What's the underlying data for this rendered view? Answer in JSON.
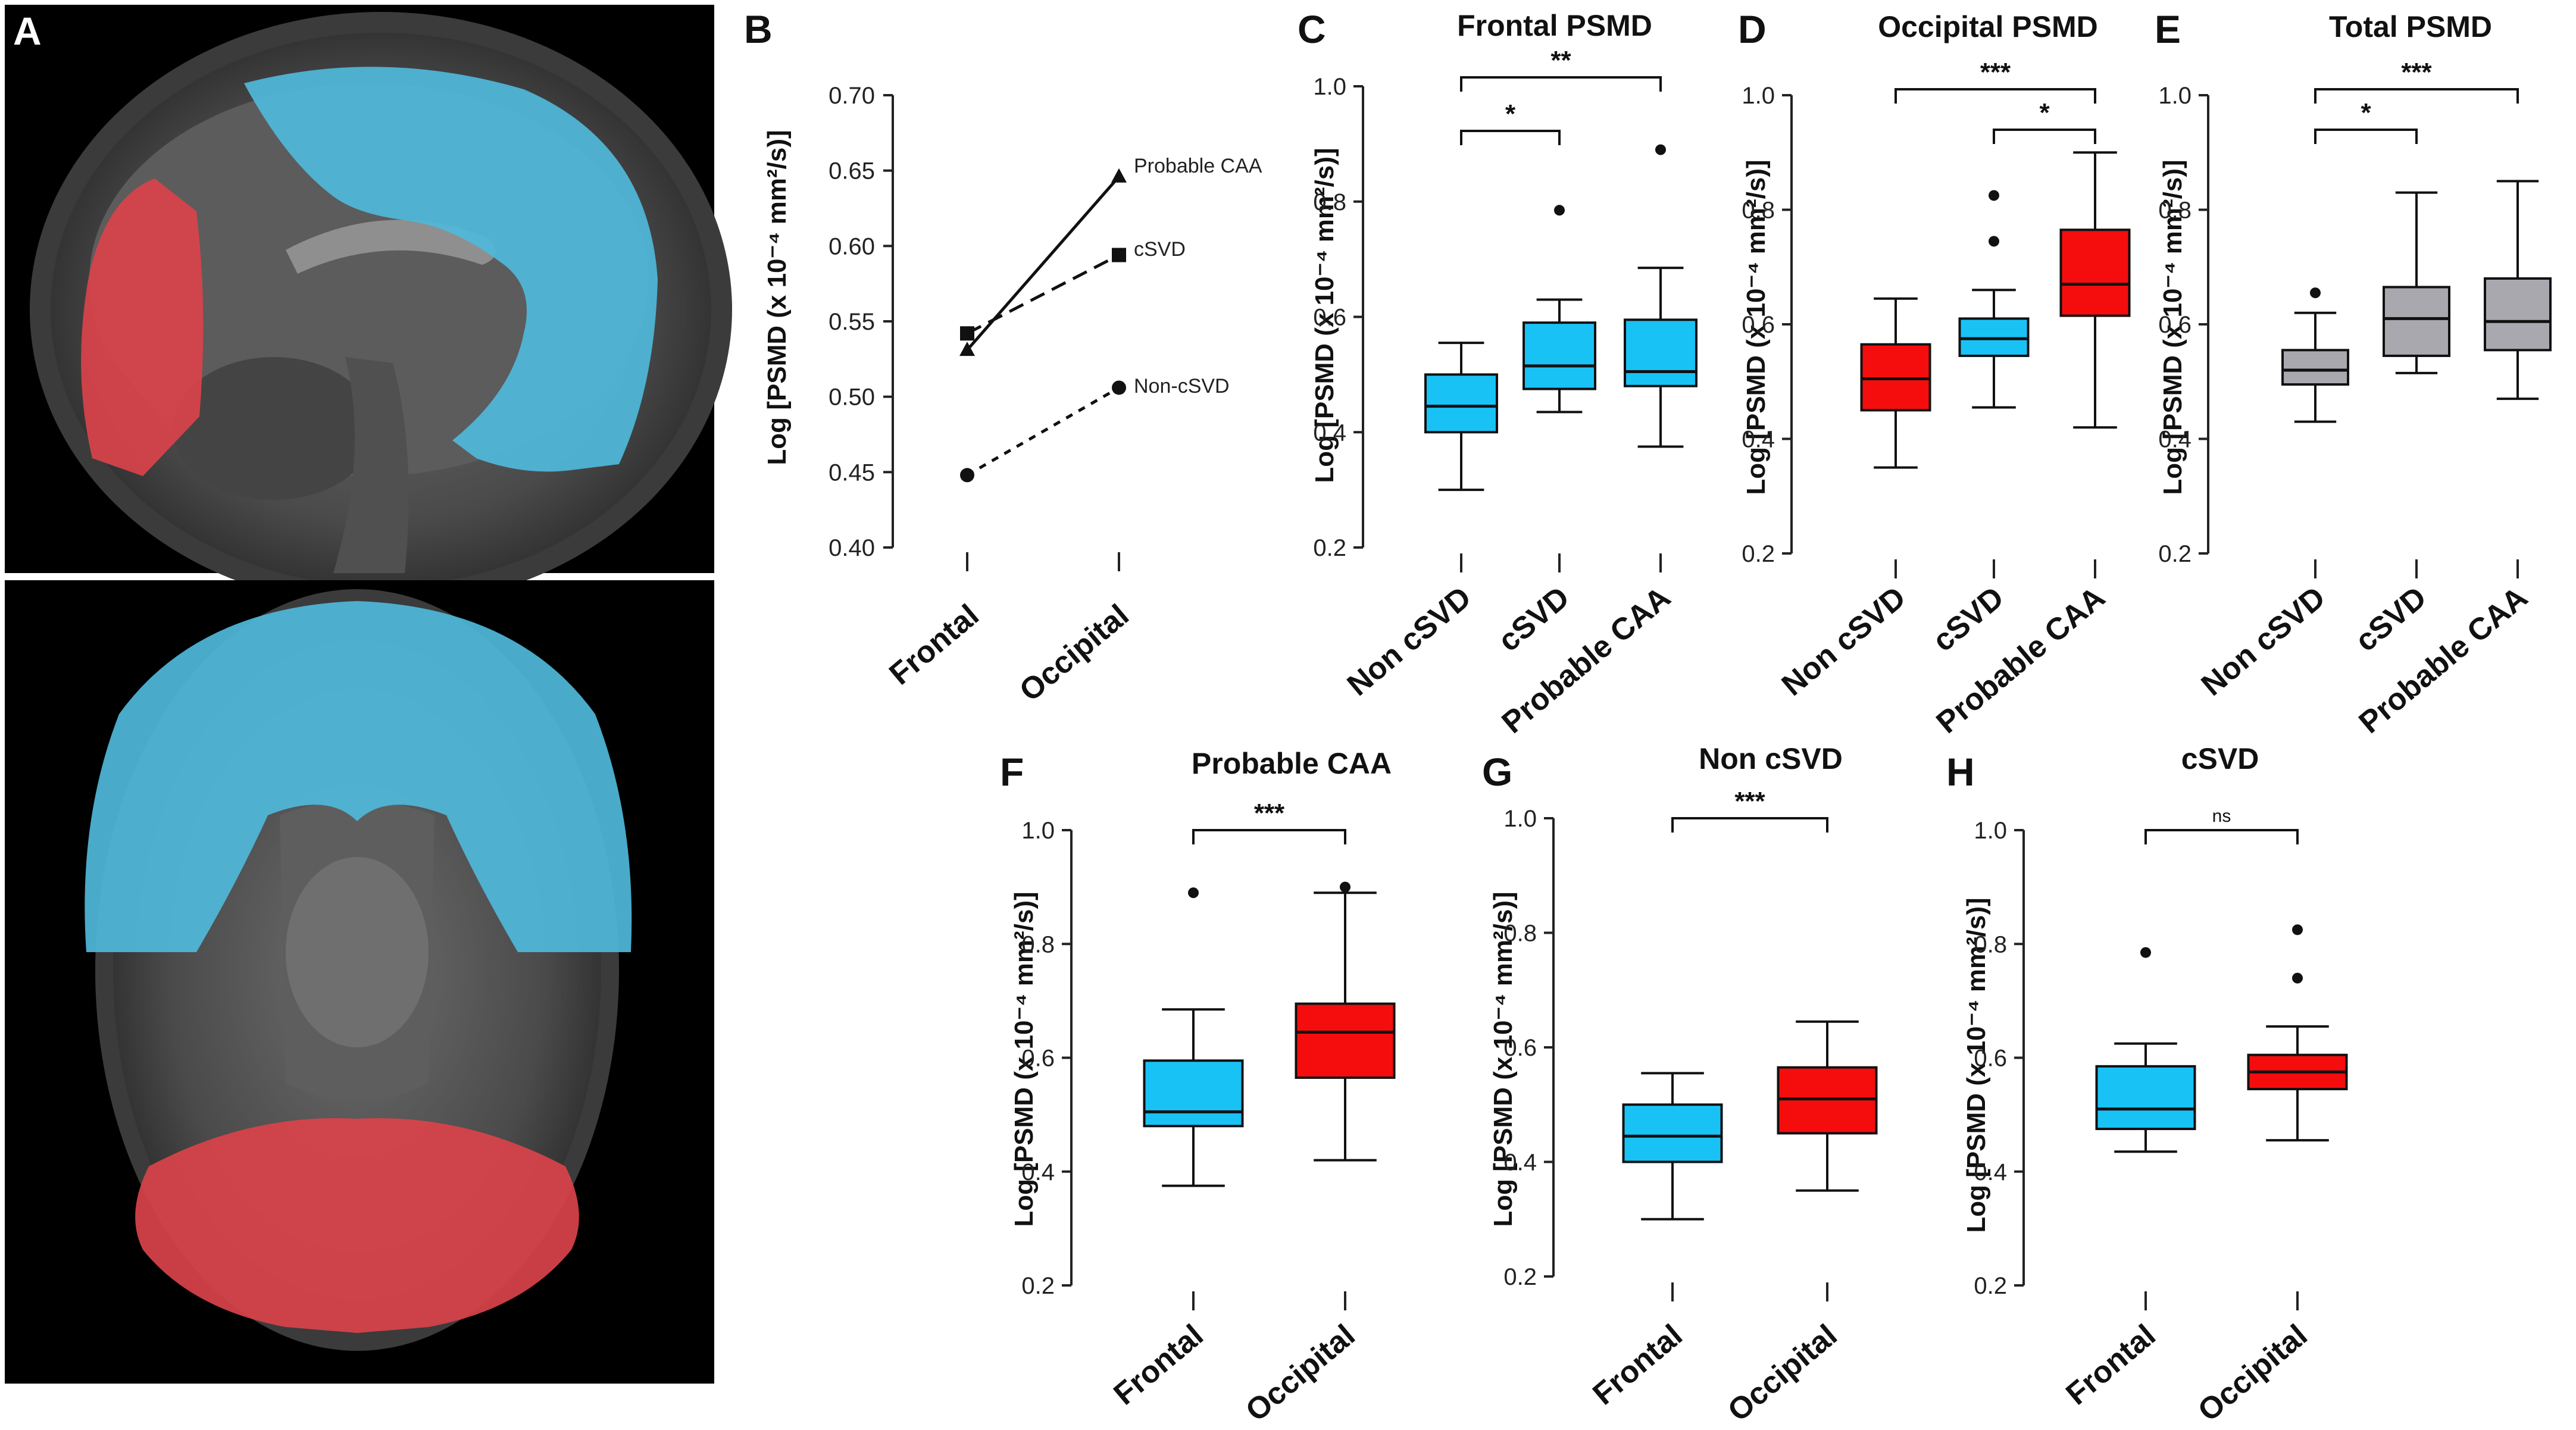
{
  "panel_labels": {
    "A": "A",
    "B": "B",
    "C": "C",
    "D": "D",
    "E": "E",
    "F": "F",
    "G": "G",
    "H": "H"
  },
  "colors": {
    "frontal_region": "#d9434a",
    "occipital_region": "#4fb8da",
    "non_csvd": "#19c2f5",
    "csvd": "#19c2f5",
    "probable_caa": "#19c2f5",
    "red": "#f50d0d",
    "gray": "#a8a8ae"
  },
  "chart_data": [
    {
      "panel": "B",
      "type": "line",
      "title": "",
      "categories": [
        "Frontal",
        "Occipital"
      ],
      "ylabel": "Log [PSMD (x 10⁻⁴ mm²/s)]",
      "ylim": [
        0.4,
        0.7
      ],
      "yticks": [
        "0.40",
        "0.45",
        "0.50",
        "0.55",
        "0.60",
        "0.65",
        "0.70"
      ],
      "series": [
        {
          "name": "Probable CAA",
          "values": [
            0.531,
            0.646
          ],
          "marker": "triangle",
          "dash": "solid"
        },
        {
          "name": "cSVD",
          "values": [
            0.542,
            0.594
          ],
          "marker": "square",
          "dash": "dashed"
        },
        {
          "name": "Non-cSVD",
          "values": [
            0.448,
            0.506
          ],
          "marker": "circle",
          "dash": "dotted"
        }
      ]
    },
    {
      "panel": "C",
      "type": "box",
      "title": "Frontal PSMD",
      "ylabel": "Log [PSMD (x 10⁻⁴ mm²/s)]",
      "ylim": [
        0.2,
        1.0
      ],
      "yticks": [
        "0.2",
        "0.4",
        "0.6",
        "0.8",
        "1.0"
      ],
      "categories": [
        "Non cSVD",
        "cSVD",
        "Probable CAA"
      ],
      "boxes": [
        {
          "min": 0.3,
          "q1": 0.4,
          "median": 0.445,
          "q3": 0.5,
          "max": 0.555,
          "outliers": [],
          "color": "#19c2f5"
        },
        {
          "min": 0.435,
          "q1": 0.475,
          "median": 0.515,
          "q3": 0.59,
          "max": 0.63,
          "outliers": [
            0.785
          ],
          "color": "#19c2f5"
        },
        {
          "min": 0.375,
          "q1": 0.48,
          "median": 0.505,
          "q3": 0.595,
          "max": 0.685,
          "outliers": [
            0.89
          ],
          "color": "#19c2f5"
        }
      ],
      "brackets": [
        {
          "from": 0,
          "to": 2,
          "label": "**"
        },
        {
          "from": 0,
          "to": 1,
          "label": "*"
        }
      ]
    },
    {
      "panel": "D",
      "type": "box",
      "title": "Occipital PSMD",
      "ylabel": "Log [PSMD (x 10⁻⁴ mm²/s)]",
      "ylim": [
        0.2,
        1.0
      ],
      "yticks": [
        "0.2",
        "0.4",
        "0.6",
        "0.8",
        "1.0"
      ],
      "categories": [
        "Non cSVD",
        "cSVD",
        "Probable CAA"
      ],
      "boxes": [
        {
          "min": 0.35,
          "q1": 0.45,
          "median": 0.505,
          "q3": 0.565,
          "max": 0.645,
          "outliers": [],
          "color": "#f50d0d"
        },
        {
          "min": 0.455,
          "q1": 0.545,
          "median": 0.575,
          "q3": 0.61,
          "max": 0.66,
          "outliers": [
            0.745,
            0.825
          ],
          "color": "#19c2f5"
        },
        {
          "min": 0.42,
          "q1": 0.615,
          "median": 0.67,
          "q3": 0.765,
          "max": 0.9,
          "outliers": [],
          "color": "#f50d0d"
        }
      ],
      "brackets": [
        {
          "from": 0,
          "to": 2,
          "label": "***"
        },
        {
          "from": 1,
          "to": 2,
          "label": "*"
        }
      ]
    },
    {
      "panel": "E",
      "type": "box",
      "title": "Total PSMD",
      "ylabel": "Log [PSMD (x 10⁻⁴ mm²/s)]",
      "ylim": [
        0.2,
        1.0
      ],
      "yticks": [
        "0.2",
        "0.4",
        "0.6",
        "0.8",
        "1.0"
      ],
      "categories": [
        "Non cSVD",
        "cSVD",
        "Probable CAA"
      ],
      "boxes": [
        {
          "min": 0.43,
          "q1": 0.495,
          "median": 0.52,
          "q3": 0.555,
          "max": 0.62,
          "outliers": [
            0.655
          ],
          "color": "#a8a8ae"
        },
        {
          "min": 0.515,
          "q1": 0.545,
          "median": 0.61,
          "q3": 0.665,
          "max": 0.83,
          "outliers": [],
          "color": "#a8a8ae"
        },
        {
          "min": 0.47,
          "q1": 0.555,
          "median": 0.605,
          "q3": 0.68,
          "max": 0.85,
          "outliers": [],
          "color": "#a8a8ae"
        }
      ],
      "brackets": [
        {
          "from": 0,
          "to": 2,
          "label": "***"
        },
        {
          "from": 0,
          "to": 1,
          "label": "*"
        }
      ]
    },
    {
      "panel": "F",
      "type": "box",
      "title": "Probable CAA",
      "ylabel": "Log [PSMD (x 10⁻⁴ mm²/s)]",
      "ylim": [
        0.2,
        1.0
      ],
      "yticks": [
        "0.2",
        "0.4",
        "0.6",
        "0.8",
        "1.0"
      ],
      "categories": [
        "Frontal",
        "Occipital"
      ],
      "boxes": [
        {
          "min": 0.375,
          "q1": 0.48,
          "median": 0.505,
          "q3": 0.595,
          "max": 0.685,
          "outliers": [
            0.89
          ],
          "color": "#19c2f5"
        },
        {
          "min": 0.42,
          "q1": 0.565,
          "median": 0.645,
          "q3": 0.695,
          "max": 0.89,
          "outliers": [
            0.9
          ],
          "color": "#f50d0d"
        }
      ],
      "brackets": [
        {
          "from": 0,
          "to": 1,
          "label": "***"
        }
      ]
    },
    {
      "panel": "G",
      "type": "box",
      "title": "Non cSVD",
      "ylabel": "Log [PSMD (x 10⁻⁴ mm²/s)]",
      "ylim": [
        0.2,
        1.0
      ],
      "yticks": [
        "0.2",
        "0.4",
        "0.6",
        "0.8",
        "1.0"
      ],
      "categories": [
        "Frontal",
        "Occipital"
      ],
      "boxes": [
        {
          "min": 0.3,
          "q1": 0.4,
          "median": 0.445,
          "q3": 0.5,
          "max": 0.555,
          "outliers": [],
          "color": "#19c2f5"
        },
        {
          "min": 0.35,
          "q1": 0.45,
          "median": 0.51,
          "q3": 0.565,
          "max": 0.645,
          "outliers": [],
          "color": "#f50d0d"
        }
      ],
      "brackets": [
        {
          "from": 0,
          "to": 1,
          "label": "***"
        }
      ]
    },
    {
      "panel": "H",
      "type": "box",
      "title": "cSVD",
      "ylabel": "Log [PSMD (x 10⁻⁴ mm²/s)]",
      "ylim": [
        0.2,
        1.0
      ],
      "yticks": [
        "0.2",
        "0.4",
        "0.6",
        "0.8",
        "1.0"
      ],
      "categories": [
        "Frontal",
        "Occipital"
      ],
      "boxes": [
        {
          "min": 0.435,
          "q1": 0.475,
          "median": 0.51,
          "q3": 0.585,
          "max": 0.625,
          "outliers": [
            0.785
          ],
          "color": "#19c2f5"
        },
        {
          "min": 0.455,
          "q1": 0.545,
          "median": 0.575,
          "q3": 0.605,
          "max": 0.655,
          "outliers": [
            0.74,
            0.825
          ],
          "color": "#f50d0d"
        }
      ],
      "brackets": [
        {
          "from": 0,
          "to": 1,
          "label": "ns"
        }
      ]
    }
  ]
}
